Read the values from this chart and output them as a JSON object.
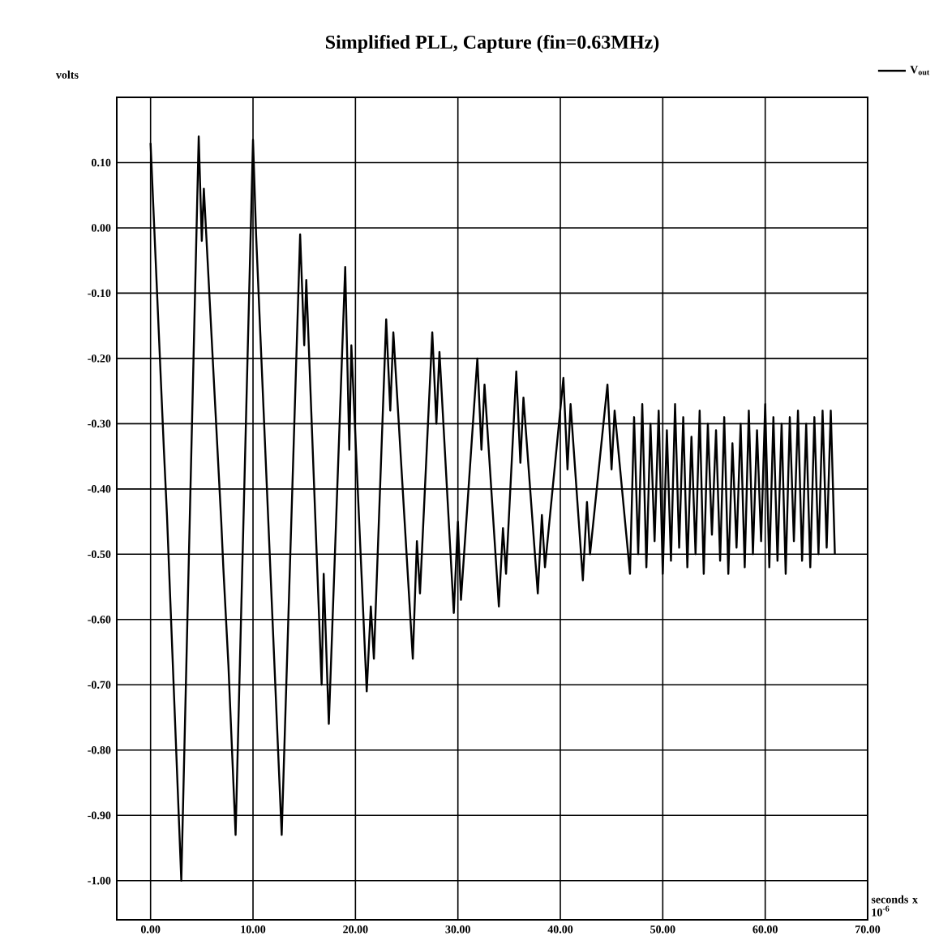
{
  "chart_data": {
    "type": "line",
    "title": "Simplified PLL, Capture (fin=0.63MHz)",
    "xlabel": "seconds x 10$^{-6}$",
    "ylabel": "volts",
    "xlim": [
      -3.3,
      70
    ],
    "ylim": [
      -1.06,
      0.2
    ],
    "xticks": [
      {
        "value": 0,
        "label": "0.00"
      },
      {
        "value": 10,
        "label": "10.00"
      },
      {
        "value": 20,
        "label": "20.00"
      },
      {
        "value": 30,
        "label": "30.00"
      },
      {
        "value": 40,
        "label": "40.00"
      },
      {
        "value": 50,
        "label": "50.00"
      },
      {
        "value": 60,
        "label": "60.00"
      },
      {
        "value": 70,
        "label": "70.00"
      }
    ],
    "yticks": [
      {
        "value": 0.1,
        "label": "0.10"
      },
      {
        "value": 0,
        "label": "0.00"
      },
      {
        "value": -0.1,
        "label": "-0.10"
      },
      {
        "value": -0.2,
        "label": "-0.20"
      },
      {
        "value": -0.3,
        "label": "-0.30"
      },
      {
        "value": -0.4,
        "label": "-0.40"
      },
      {
        "value": -0.5,
        "label": "-0.50"
      },
      {
        "value": -0.6,
        "label": "-0.60"
      },
      {
        "value": -0.7,
        "label": "-0.70"
      },
      {
        "value": -0.8,
        "label": "-0.80"
      },
      {
        "value": -0.9,
        "label": "-0.90"
      },
      {
        "value": -1.0,
        "label": "-1.00"
      }
    ],
    "grid": true,
    "legend": "top right",
    "marker": "none",
    "line_style": "solid",
    "series": [
      {
        "name": "V$_{out}$",
        "color": "#000000",
        "x": [
          0,
          1.3,
          1.6,
          3.0,
          4.7,
          5.0,
          5.2,
          6.9,
          7.1,
          7.6,
          8.3,
          10.0,
          10.3,
          12.8,
          14.6,
          15.0,
          15.2,
          16.7,
          16.9,
          17.4,
          19.0,
          19.4,
          19.6,
          21.1,
          21.5,
          21.8,
          23.0,
          23.4,
          23.7,
          25.6,
          26.0,
          26.3,
          27.5,
          27.9,
          28.2,
          29.6,
          30.0,
          30.3,
          31.9,
          32.3,
          32.6,
          34.0,
          34.4,
          34.7,
          35.7,
          36.1,
          36.4,
          37.8,
          38.2,
          38.5,
          40.3,
          40.7,
          41.0,
          42.2,
          42.6,
          42.9,
          44.6,
          45.0,
          45.3,
          46.8,
          47.2,
          47.6,
          48.0,
          48.4,
          48.8,
          49.2,
          49.6,
          50.0,
          50.4,
          50.8,
          51.2,
          51.6,
          52.0,
          52.4,
          52.8,
          53.2,
          53.6,
          54.0,
          54.4,
          54.8,
          55.2,
          55.6,
          56.0,
          56.4,
          56.8,
          57.2,
          57.6,
          58.0,
          58.4,
          58.8,
          59.2,
          59.6,
          60.0,
          60.4,
          60.8,
          61.2,
          61.6,
          62.0,
          62.4,
          62.8,
          63.2,
          63.6,
          64.0,
          64.4,
          64.8,
          65.2,
          65.6,
          66.0,
          66.4,
          66.8
        ],
        "values": [
          0.13,
          -0.34,
          -0.44,
          -1.0,
          0.14,
          -0.02,
          0.06,
          -0.45,
          -0.52,
          -0.67,
          -0.93,
          0.135,
          -0.01,
          -0.93,
          -0.01,
          -0.18,
          -0.08,
          -0.7,
          -0.53,
          -0.76,
          -0.06,
          -0.34,
          -0.18,
          -0.71,
          -0.58,
          -0.66,
          -0.14,
          -0.28,
          -0.16,
          -0.66,
          -0.48,
          -0.56,
          -0.16,
          -0.3,
          -0.19,
          -0.59,
          -0.45,
          -0.57,
          -0.2,
          -0.34,
          -0.24,
          -0.58,
          -0.46,
          -0.53,
          -0.22,
          -0.36,
          -0.26,
          -0.56,
          -0.44,
          -0.52,
          -0.23,
          -0.37,
          -0.27,
          -0.54,
          -0.42,
          -0.5,
          -0.24,
          -0.37,
          -0.28,
          -0.53,
          -0.29,
          -0.5,
          -0.27,
          -0.52,
          -0.3,
          -0.48,
          -0.28,
          -0.53,
          -0.31,
          -0.51,
          -0.27,
          -0.49,
          -0.29,
          -0.52,
          -0.32,
          -0.5,
          -0.28,
          -0.53,
          -0.3,
          -0.47,
          -0.31,
          -0.51,
          -0.29,
          -0.53,
          -0.33,
          -0.49,
          -0.3,
          -0.52,
          -0.28,
          -0.5,
          -0.31,
          -0.48,
          -0.27,
          -0.52,
          -0.29,
          -0.51,
          -0.3,
          -0.53,
          -0.29,
          -0.48,
          -0.28,
          -0.51,
          -0.3,
          -0.52,
          -0.29,
          -0.5,
          -0.28,
          -0.49,
          -0.28,
          -0.5
        ]
      }
    ]
  }
}
